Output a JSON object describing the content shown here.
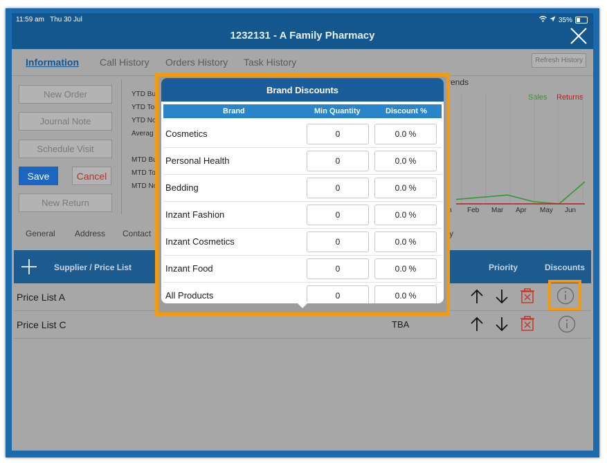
{
  "status": {
    "time": "11:59 am",
    "date": "Thu 30 Jul",
    "battery": "35%"
  },
  "header": {
    "title": "1232131 - A Family Pharmacy"
  },
  "tabs": [
    "Information",
    "Call History",
    "Orders History",
    "Task History"
  ],
  "refresh_label": "Refresh History",
  "actions": {
    "new_order": "New Order",
    "journal_note": "Journal Note",
    "schedule_visit": "Schedule Visit",
    "save": "Save",
    "cancel": "Cancel",
    "new_return": "New Return"
  },
  "stats": [
    "YTD Bu",
    "YTD To",
    "YTD No",
    "Averag",
    "MTD Bu",
    "MTD To",
    "MTD No"
  ],
  "chart": {
    "title": "rends",
    "legend_sales": "Sales",
    "legend_returns": "Returns",
    "months": [
      "n",
      "Feb",
      "Mar",
      "Apr",
      "May",
      "Jun"
    ],
    "colors": {
      "sales": "#2f9a2f",
      "returns": "#b02020"
    }
  },
  "chart_data": {
    "type": "line",
    "title": "Trends",
    "categories": [
      "Jan",
      "Feb",
      "Mar",
      "Apr",
      "May",
      "Jun"
    ],
    "series": [
      {
        "name": "Sales",
        "values": [
          2,
          3,
          4,
          1,
          0,
          10
        ]
      },
      {
        "name": "Returns",
        "values": [
          0,
          0,
          0,
          0,
          0,
          0
        ]
      }
    ],
    "ylim": [
      0,
      50
    ]
  },
  "subtabs": [
    "General",
    "Address",
    "Contact",
    "y"
  ],
  "supplier_table": {
    "headers": {
      "supplier": "Supplier / Price List",
      "priority": "Priority",
      "discounts": "Discounts"
    },
    "rows": [
      {
        "name": "Price List A",
        "status": ""
      },
      {
        "name": "Price List C",
        "status": "TBA"
      }
    ]
  },
  "popover": {
    "title": "Brand Discounts",
    "headers": {
      "brand": "Brand",
      "min_qty": "Min Quantity",
      "discount": "Discount %"
    },
    "rows": [
      {
        "brand": "Cosmetics",
        "min_qty": "0",
        "discount": "0.0 %"
      },
      {
        "brand": "Personal Health",
        "min_qty": "0",
        "discount": "0.0 %"
      },
      {
        "brand": "Bedding",
        "min_qty": "0",
        "discount": "0.0 %"
      },
      {
        "brand": "Inzant Fashion",
        "min_qty": "0",
        "discount": "0.0 %"
      },
      {
        "brand": "Inzant Cosmetics",
        "min_qty": "0",
        "discount": "0.0 %"
      },
      {
        "brand": "Inzant Food",
        "min_qty": "0",
        "discount": "0.0 %"
      },
      {
        "brand": "All Products",
        "min_qty": "0",
        "discount": "0.0 %"
      }
    ]
  },
  "colors": {
    "brand_blue": "#14578f",
    "highlight": "#f29a12",
    "danger": "#b2352c"
  }
}
